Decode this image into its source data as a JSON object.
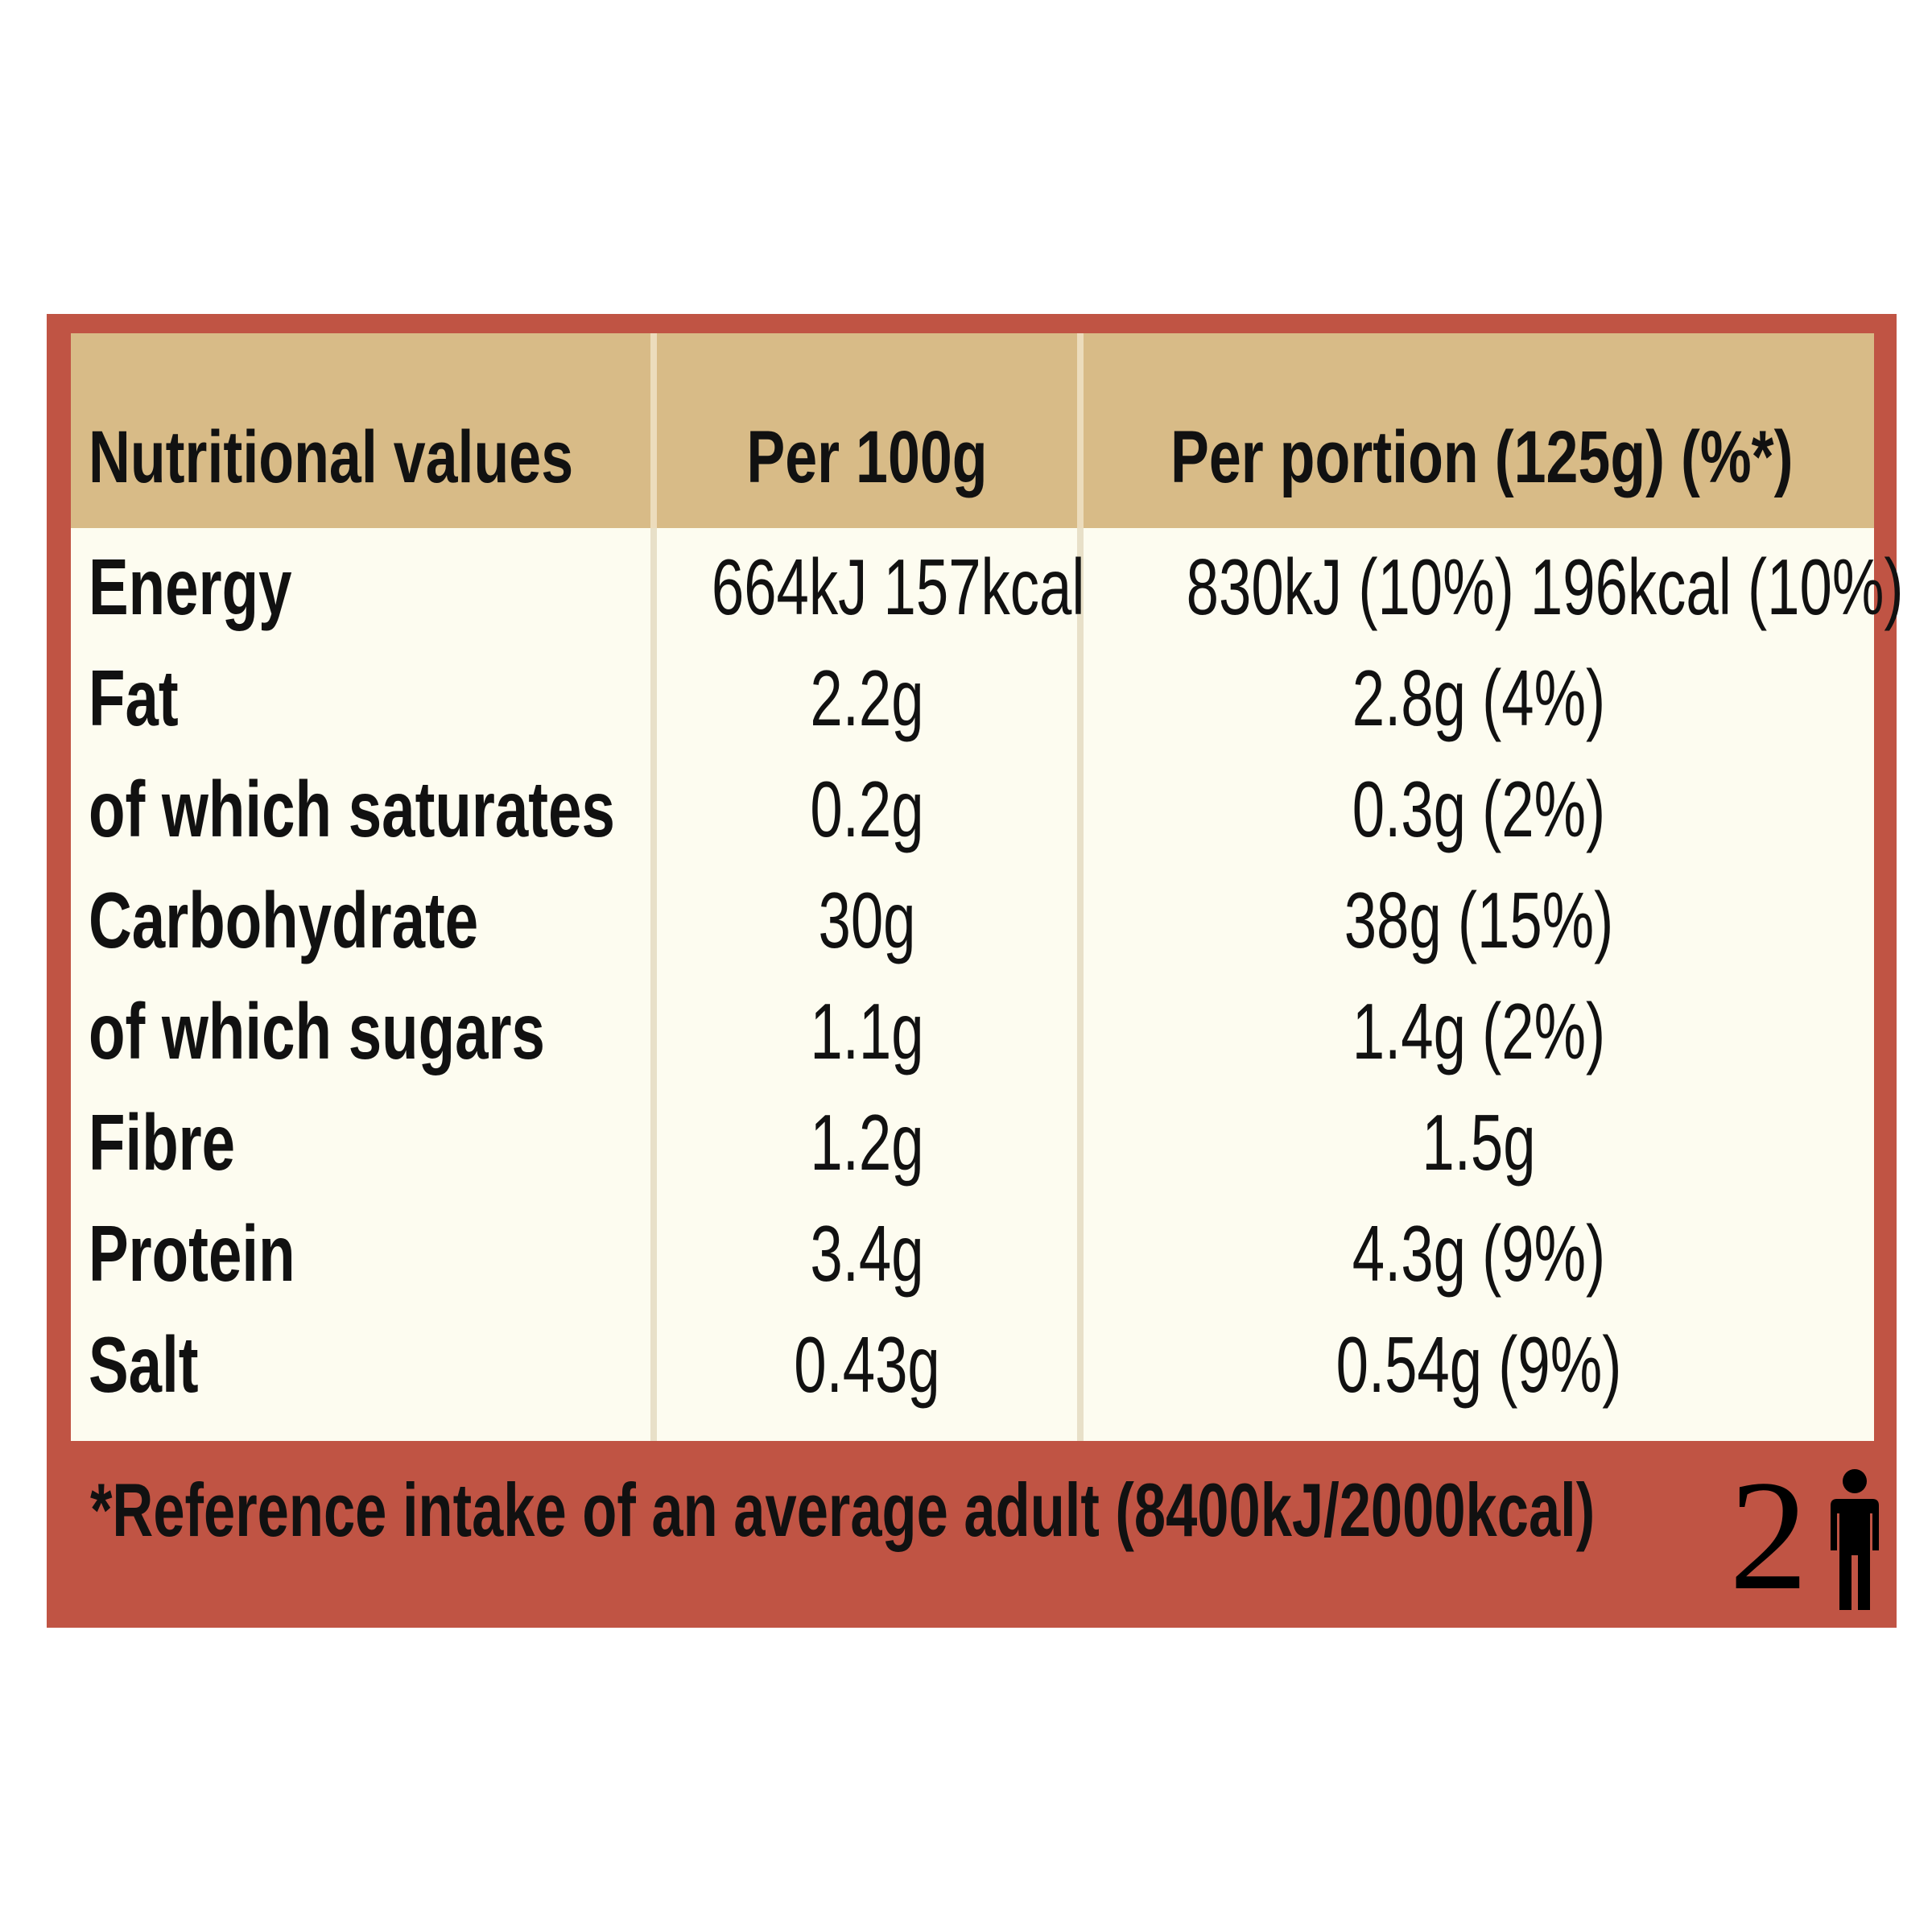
{
  "table": {
    "headers": {
      "name": "Nutritional values",
      "per100": "Per 100g",
      "perPortion": "Per portion (125g) (%*)"
    },
    "rows": [
      {
        "name": "Energy",
        "per100": "664kJ 157kcal",
        "perPortion": "830kJ (10%) 196kcal (10%)"
      },
      {
        "name": "Fat",
        "per100": "2.2g",
        "perPortion": "2.8g (4%)"
      },
      {
        "name": "of which saturates",
        "per100": "0.2g",
        "perPortion": "0.3g (2%)"
      },
      {
        "name": "Carbohydrate",
        "per100": "30g",
        "perPortion": "38g (15%)"
      },
      {
        "name": "of which sugars",
        "per100": "1.1g",
        "perPortion": "1.4g (2%)"
      },
      {
        "name": "Fibre",
        "per100": "1.2g",
        "perPortion": "1.5g"
      },
      {
        "name": "Protein",
        "per100": "3.4g",
        "perPortion": "4.3g (9%)"
      },
      {
        "name": "Salt",
        "per100": "0.43g",
        "perPortion": "0.54g (9%)"
      }
    ]
  },
  "footer": {
    "footnote": "*Reference intake of an average adult (8400kJ/2000kcal)",
    "portions": "2",
    "portions_icon": "person-icon"
  },
  "colors": {
    "panel": "#c05444",
    "header": "#d8bb87",
    "body": "#fdfcf0",
    "text": "#111111"
  }
}
